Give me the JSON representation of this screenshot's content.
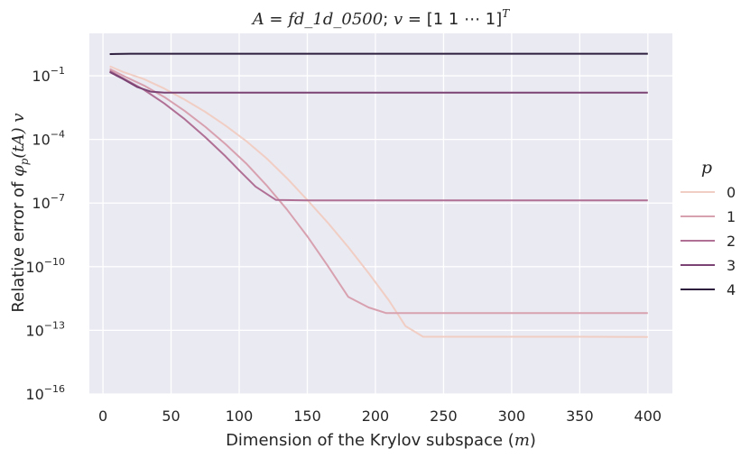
{
  "chart_data": {
    "type": "line",
    "title": {
      "pre": "A",
      "eq": " = ",
      "name": "fd_1d_0500",
      "sep": "; ",
      "v": "v",
      "vec": " = [1 1 ⋯ 1]",
      "T": "T"
    },
    "xlabel": {
      "text": "Dimension of the Krylov subspace (",
      "m": "m",
      "close": ")"
    },
    "ylabel": {
      "text": "Relative error of ",
      "phi": "φ",
      "p": "p",
      "args": "(tA)",
      "v": "v"
    },
    "xlim": [
      -10,
      418
    ],
    "ylim": [
      1e-16,
      10
    ],
    "yscale": "log",
    "x_ticks": [
      0,
      50,
      100,
      150,
      200,
      250,
      300,
      350,
      400
    ],
    "y_ticks": [
      {
        "base": "10",
        "exp": "−1",
        "value": 0.1
      },
      {
        "base": "10",
        "exp": "−4",
        "value": 0.0001
      },
      {
        "base": "10",
        "exp": "−7",
        "value": 1e-07
      },
      {
        "base": "10",
        "exp": "−10",
        "value": 1e-10
      },
      {
        "base": "10",
        "exp": "−13",
        "value": 1e-13
      },
      {
        "base": "10",
        "exp": "−16",
        "value": 1e-16
      }
    ],
    "grid": true,
    "legend": {
      "title": "p",
      "placement": "right"
    },
    "series": [
      {
        "name": "0",
        "color": "#f1cec4",
        "x": [
          5,
          15,
          30,
          45,
          60,
          75,
          90,
          105,
          120,
          135,
          150,
          165,
          180,
          195,
          210,
          222,
          235,
          260,
          300,
          350,
          400
        ],
        "y": [
          0.28,
          0.15,
          0.07,
          0.025,
          0.0075,
          0.002,
          0.00045,
          8.5e-05,
          1.3e-05,
          1.5e-06,
          1.4e-07,
          1.2e-08,
          8.5e-10,
          5e-11,
          2.5e-12,
          1.6e-13,
          5e-14,
          5e-14,
          5e-14,
          5e-14,
          4.9e-14
        ]
      },
      {
        "name": "1",
        "color": "#d8a1b0",
        "x": [
          5,
          15,
          30,
          45,
          60,
          75,
          90,
          105,
          120,
          135,
          150,
          165,
          180,
          195,
          208,
          250,
          300,
          350,
          400
        ],
        "y": [
          0.21,
          0.1,
          0.035,
          0.01,
          0.0022,
          0.0004,
          6e-05,
          7.5e-06,
          7e-07,
          5e-08,
          2.7e-09,
          1.1e-10,
          3.8e-12,
          1.2e-12,
          6.5e-13,
          6.5e-13,
          6.5e-13,
          6.5e-13,
          6.5e-13
        ]
      },
      {
        "name": "2",
        "color": "#b07095",
        "x": [
          5,
          15,
          30,
          45,
          60,
          75,
          90,
          100,
          112,
          127,
          150,
          200,
          300,
          400
        ],
        "y": [
          0.17,
          0.075,
          0.022,
          0.005,
          0.0009,
          0.00013,
          1.6e-05,
          3.5e-06,
          6e-07,
          1.4e-07,
          1.35e-07,
          1.35e-07,
          1.35e-07,
          1.35e-07
        ]
      },
      {
        "name": "3",
        "color": "#7b4373",
        "x": [
          5,
          15,
          25,
          35,
          45,
          60,
          100,
          200,
          300,
          400
        ],
        "y": [
          0.15,
          0.07,
          0.03,
          0.018,
          0.016,
          0.016,
          0.016,
          0.016,
          0.016,
          0.016
        ]
      },
      {
        "name": "4",
        "color": "#2d1e3e",
        "x": [
          5,
          20,
          50,
          100,
          200,
          300,
          400
        ],
        "y": [
          1.05,
          1.1,
          1.1,
          1.1,
          1.1,
          1.1,
          1.1
        ]
      }
    ]
  }
}
